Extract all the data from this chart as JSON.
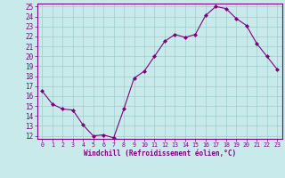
{
  "x": [
    0,
    1,
    2,
    3,
    4,
    5,
    6,
    7,
    8,
    9,
    10,
    11,
    12,
    13,
    14,
    15,
    16,
    17,
    18,
    19,
    20,
    21,
    22,
    23
  ],
  "y": [
    16.5,
    15.2,
    14.7,
    14.6,
    13.1,
    12.0,
    12.1,
    11.8,
    14.7,
    17.8,
    18.5,
    20.0,
    21.5,
    22.2,
    21.9,
    22.2,
    24.1,
    25.0,
    24.8,
    23.8,
    23.1,
    21.3,
    20.0,
    18.7
  ],
  "line_color": "#800080",
  "marker_color": "#800080",
  "bg_color": "#c8eaea",
  "grid_color": "#a0cccc",
  "spine_color": "#800080",
  "xlabel": "Windchill (Refroidissement éolien,°C)",
  "ylim": [
    12,
    25
  ],
  "yticks": [
    12,
    13,
    14,
    15,
    16,
    17,
    18,
    19,
    20,
    21,
    22,
    23,
    24,
    25
  ],
  "xticks": [
    0,
    1,
    2,
    3,
    4,
    5,
    6,
    7,
    8,
    9,
    10,
    11,
    12,
    13,
    14,
    15,
    16,
    17,
    18,
    19,
    20,
    21,
    22,
    23
  ],
  "font_color": "#800080",
  "xlabel_fontsize": 5.5,
  "tick_fontsize": 5.5,
  "xtick_fontsize": 4.8
}
